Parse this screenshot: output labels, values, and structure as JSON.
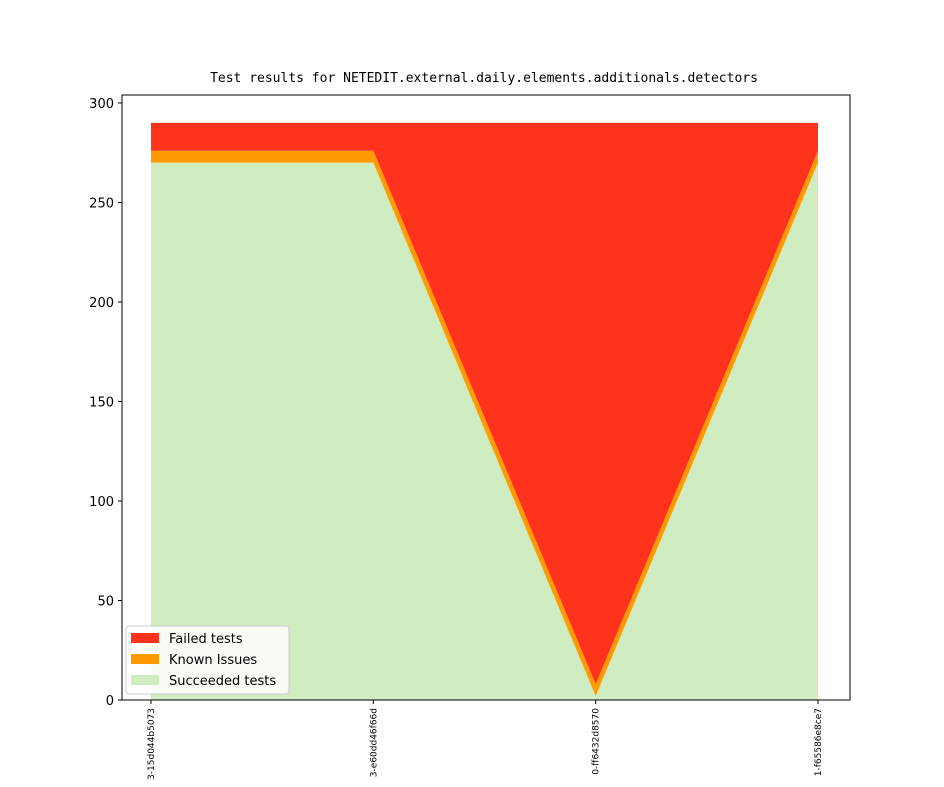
{
  "chart_data": {
    "type": "stackedarea",
    "title": "Test results for NETEDIT.external.daily.elements.additionals.detectors",
    "categories": [
      "3-15d044b5073",
      "3-e60dd46f66d",
      "0-ff6432d8570",
      "1-f65586e8ce7"
    ],
    "series": [
      {
        "name": "Succeeded tests",
        "color": "#cfedc0",
        "values": [
          270,
          270,
          2,
          270
        ]
      },
      {
        "name": "Known Issues",
        "color": "#ff9a00",
        "values": [
          6,
          6,
          6,
          6
        ]
      },
      {
        "name": "Failed tests",
        "color": "#ff321c",
        "values": [
          14,
          14,
          282,
          14
        ]
      }
    ],
    "ylim": [
      0,
      304
    ],
    "yticks": [
      0,
      50,
      100,
      150,
      200,
      250,
      300
    ],
    "legend": "lower left"
  }
}
